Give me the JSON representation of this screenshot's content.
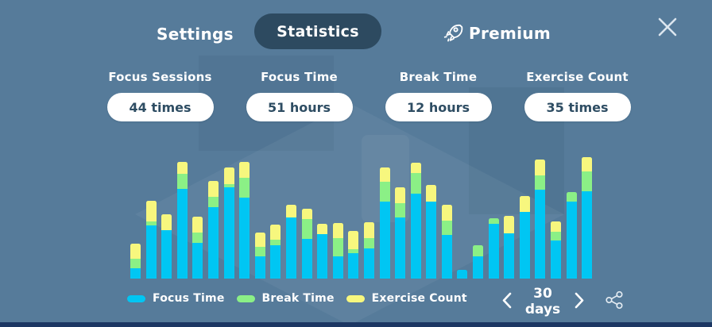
{
  "header": {
    "tabs": [
      {
        "id": "settings",
        "label": "Settings",
        "active": false
      },
      {
        "id": "statistics",
        "label": "Statistics",
        "active": true
      },
      {
        "id": "premium",
        "label": "Premium",
        "active": false,
        "icon": "rocket-icon"
      }
    ],
    "close_icon": "close-x"
  },
  "stats": [
    {
      "label": "Focus Sessions",
      "value": "44 times"
    },
    {
      "label": "Focus Time",
      "value": "51 hours"
    },
    {
      "label": "Break Time",
      "value": "12 hours"
    },
    {
      "label": "Exercise Count",
      "value": "35 times"
    }
  ],
  "chart_data": {
    "type": "bar",
    "stacked": true,
    "title": "",
    "xlabel": "",
    "ylabel": "",
    "x_description": "30 daily bars, no axis tick labels shown",
    "categories": [
      1,
      2,
      3,
      4,
      5,
      6,
      7,
      8,
      9,
      10,
      11,
      12,
      13,
      14,
      15,
      16,
      17,
      18,
      19,
      20,
      21,
      22,
      23,
      24,
      25,
      26,
      27,
      28,
      29,
      30
    ],
    "unit": "relative height (px, unlabeled axis)",
    "ylim": [
      0,
      156
    ],
    "grid": false,
    "axes_visible": false,
    "legend_position": "bottom-left",
    "series": [
      {
        "name": "Focus Time",
        "color": "#00c6f3",
        "values": [
          13,
          67,
          61,
          113,
          45,
          90,
          115,
          102,
          28,
          42,
          77,
          50,
          56,
          28,
          32,
          38,
          97,
          77,
          107,
          97,
          55,
          11,
          28,
          69,
          57,
          84,
          112,
          48,
          97,
          110
        ]
      },
      {
        "name": "Break Time",
        "color": "#8bf086",
        "values": [
          12,
          5,
          0,
          19,
          13,
          13,
          4,
          25,
          12,
          7,
          0,
          25,
          0,
          23,
          5,
          13,
          25,
          18,
          26,
          0,
          18,
          0,
          14,
          7,
          0,
          0,
          18,
          11,
          12,
          25
        ]
      },
      {
        "name": "Exercise Count",
        "color": "#f7f77e",
        "values": [
          19,
          26,
          20,
          15,
          20,
          20,
          21,
          20,
          18,
          19,
          16,
          13,
          13,
          19,
          23,
          20,
          18,
          20,
          13,
          21,
          20,
          0,
          0,
          0,
          22,
          20,
          20,
          13,
          0,
          18
        ]
      }
    ]
  },
  "legend": [
    {
      "label": "Focus Time",
      "color": "#00c6f3"
    },
    {
      "label": "Break Time",
      "color": "#8bf086"
    },
    {
      "label": "Exercise Count",
      "color": "#f7f77e"
    }
  ],
  "pager": {
    "label": "30 days",
    "prev_icon": "chevron-left",
    "next_icon": "chevron-right"
  },
  "share": {
    "icon": "share-nodes"
  },
  "colors": {
    "background": "#567b9a",
    "active_tab_pill": "#2d4a60",
    "card_background": "#ffffff",
    "card_text": "#2e4d63",
    "bottom_strip": "#1c3763"
  }
}
